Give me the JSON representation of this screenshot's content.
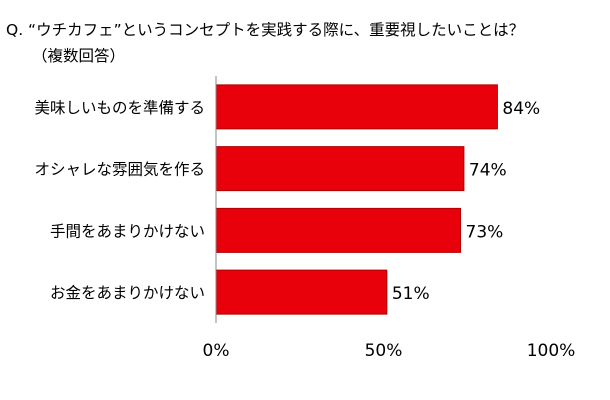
{
  "chart_data": {
    "type": "bar",
    "orientation": "horizontal",
    "title": "Q. “ウチカフェ”というコンセプトを実践する際に、重要視したいことは？",
    "subtitle": "（複数回答）",
    "categories": [
      "美味しいものを準備する",
      "オシャレな雰囲気を作る",
      "手間をあまりかけない",
      "お金をあまりかけない"
    ],
    "values": [
      84,
      74,
      73,
      51
    ],
    "value_labels": [
      "84%",
      "74%",
      "73%",
      "51%"
    ],
    "xlim": [
      0,
      100
    ],
    "ticks": [
      0,
      50,
      100
    ],
    "tick_labels": [
      "0%",
      "50%",
      "100%"
    ],
    "xlabel": "",
    "ylabel": "",
    "grid": false,
    "bar_color": "#e8000b",
    "bar_outline_color": "#b00000",
    "axis_color": "#888888"
  }
}
